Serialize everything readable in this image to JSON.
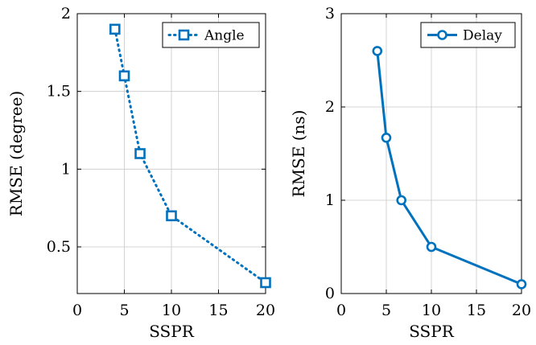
{
  "chart_data": [
    {
      "type": "line",
      "xlabel": "SSPR",
      "ylabel": "RMSE (degree)",
      "xlim": [
        0,
        20
      ],
      "ylim": [
        0.2,
        2
      ],
      "xticks": [
        0,
        5,
        10,
        15,
        20
      ],
      "yticks": [
        0.5,
        1,
        1.5,
        2
      ],
      "ytick_labels": [
        "0.5",
        "1",
        "1.5",
        "2"
      ],
      "grid": true,
      "legend_position": "top-right",
      "series": [
        {
          "name": "Angle",
          "x": [
            4,
            5,
            6.67,
            10,
            20
          ],
          "y": [
            1.9,
            1.6,
            1.1,
            0.7,
            0.27
          ],
          "color": "#0072BD",
          "line_style": "dotted",
          "marker": "square"
        }
      ]
    },
    {
      "type": "line",
      "xlabel": "SSPR",
      "ylabel": "RMSE (ns)",
      "xlim": [
        0,
        20
      ],
      "ylim": [
        0,
        3
      ],
      "xticks": [
        0,
        5,
        10,
        15,
        20
      ],
      "yticks": [
        0,
        1,
        2,
        3
      ],
      "ytick_labels": [
        "0",
        "1",
        "2",
        "3"
      ],
      "grid": true,
      "legend_position": "top-right",
      "series": [
        {
          "name": "Delay",
          "x": [
            4,
            5,
            6.67,
            10,
            20
          ],
          "y": [
            2.6,
            1.67,
            1.0,
            0.5,
            0.1
          ],
          "color": "#0072BD",
          "line_style": "solid",
          "marker": "circle"
        }
      ]
    }
  ]
}
